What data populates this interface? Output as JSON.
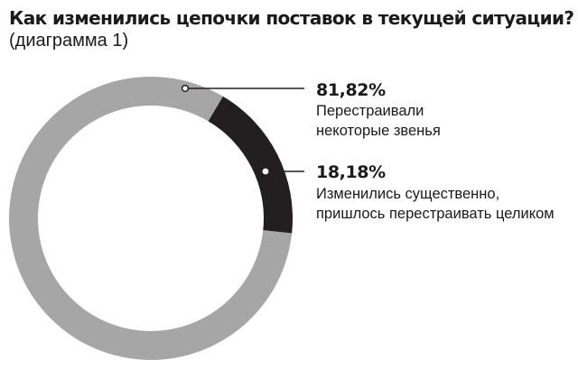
{
  "chart_data": {
    "type": "pie",
    "title": "Как изменились цепочки поставок в текущей ситуации?",
    "subtitle": "(диаграмма 1)",
    "slices": [
      {
        "value": 81.82,
        "value_label": "81,82%",
        "label_lines": [
          "Перестраивали",
          "некоторые звенья"
        ],
        "color": "#a6a6a6"
      },
      {
        "value": 18.18,
        "value_label": "18,18%",
        "label_lines": [
          "Изменились существенно,",
          "пришлось перестраивать целиком"
        ],
        "color": "#231f20"
      }
    ]
  }
}
